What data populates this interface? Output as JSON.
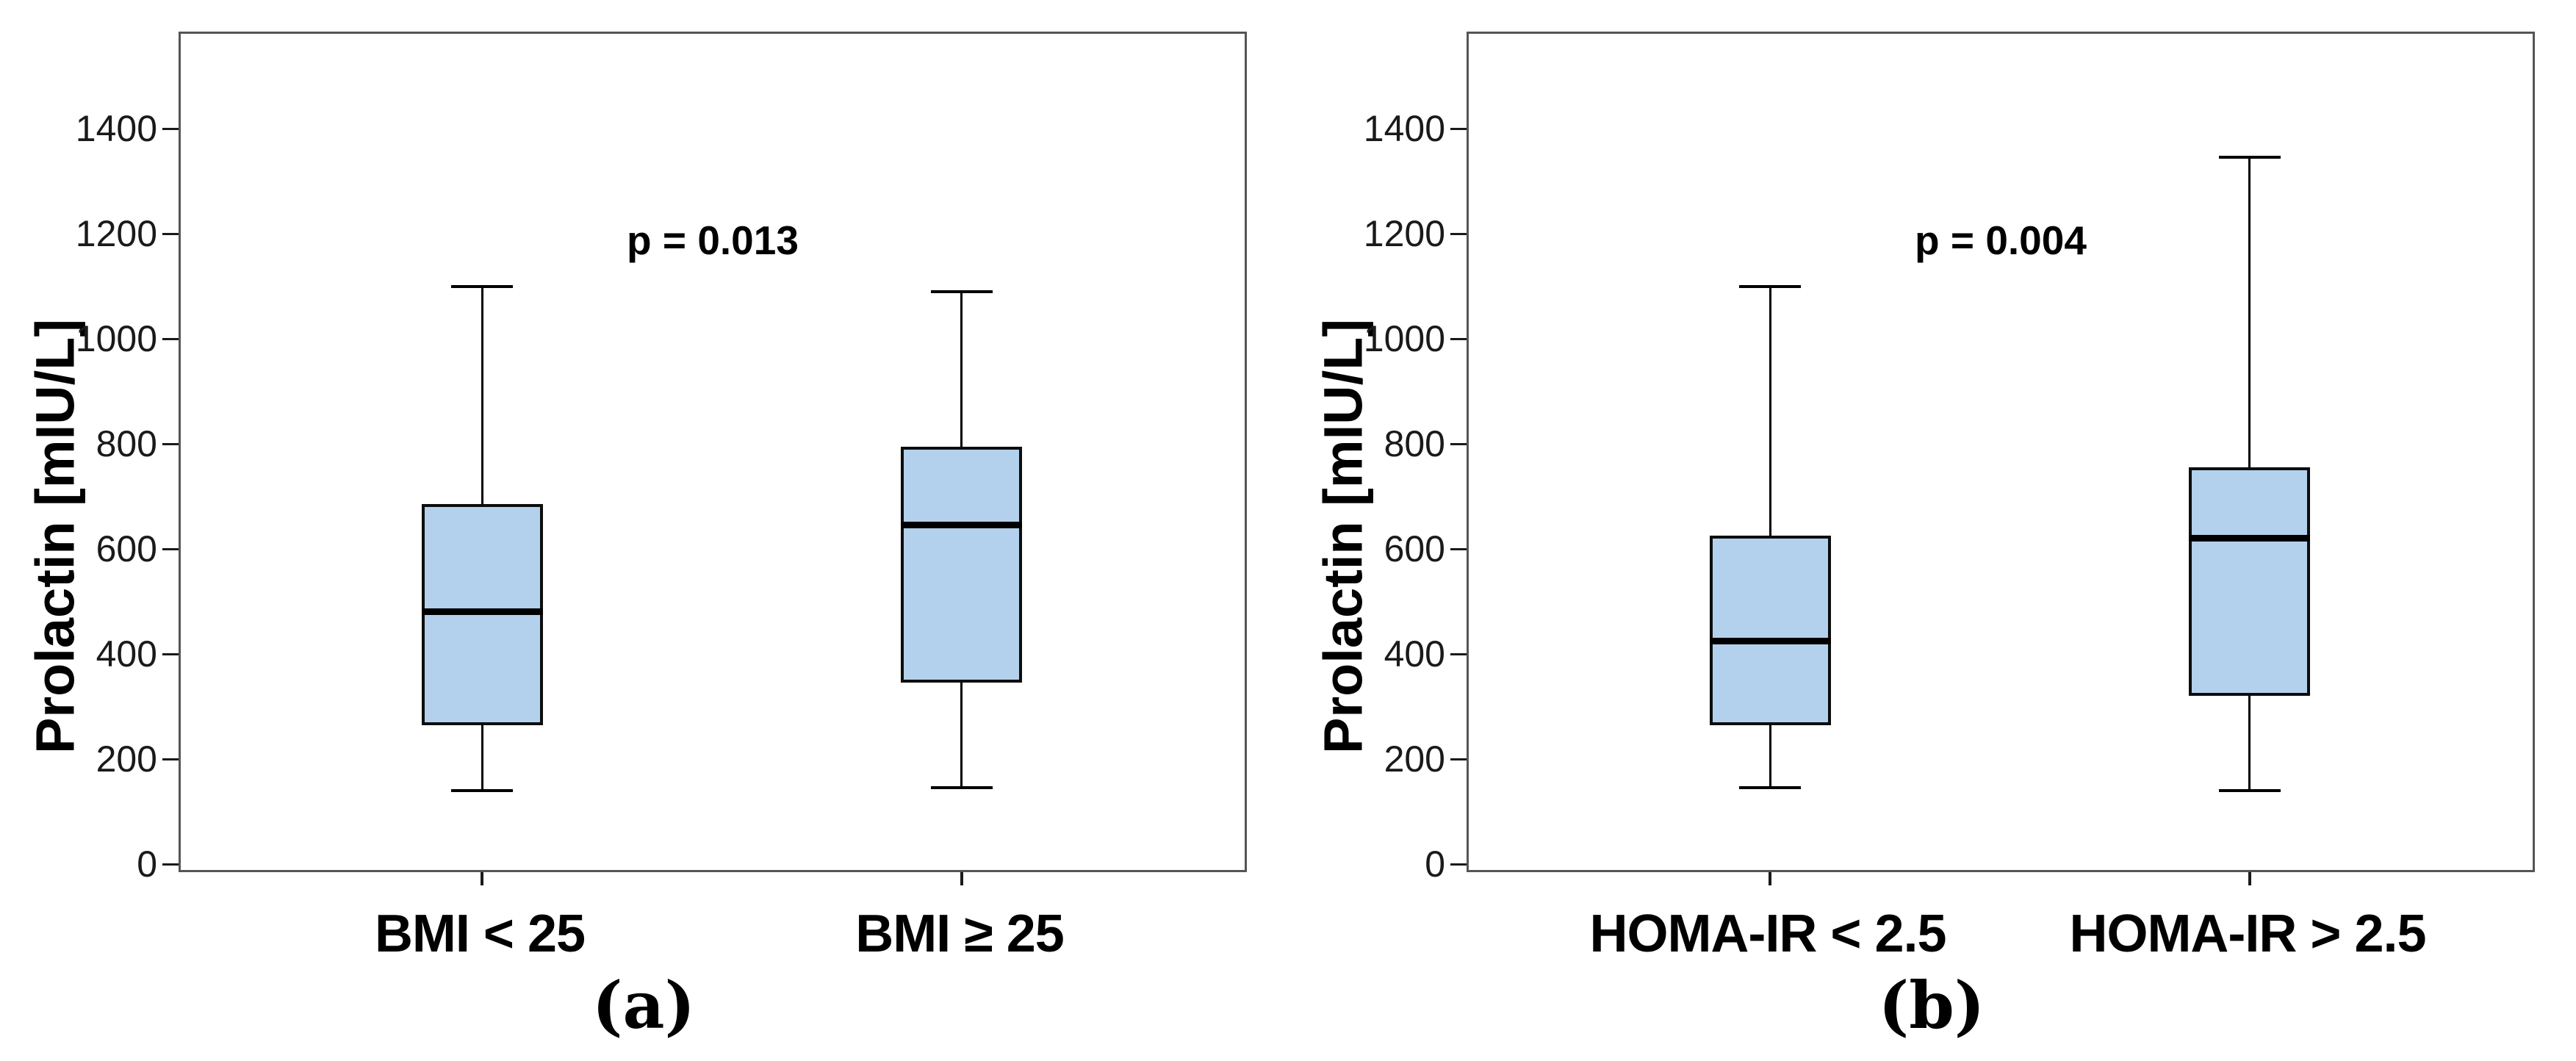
{
  "figure": {
    "background": "#ffffff",
    "panels": [
      {
        "caption": "(a)",
        "ylabel": "Prolactin [mIU/L]"
      },
      {
        "caption": "(b)",
        "ylabel": "Prolactin [mIU/L]"
      }
    ]
  },
  "chart_data": [
    {
      "type": "boxplot",
      "title": "",
      "xlabel": "",
      "ylabel": "Prolactin [mIU/L]",
      "annotation": "p = 0.013",
      "categories": [
        "BMI < 25",
        "BMI ≥ 25"
      ],
      "y_axis": {
        "min": 0,
        "max": 1400,
        "ticks": [
          0,
          200,
          400,
          600,
          800,
          1000,
          1200,
          1400
        ]
      },
      "grid": false,
      "series": [
        {
          "name": "BMI < 25",
          "whisker_low": 140,
          "q1": 265,
          "median": 480,
          "q3": 685,
          "whisker_high": 1100
        },
        {
          "name": "BMI ≥ 25",
          "whisker_low": 145,
          "q1": 345,
          "median": 645,
          "q3": 795,
          "whisker_high": 1090
        }
      ],
      "colors": {
        "box_fill": "#B3D1EC",
        "box_border": "#0d0d0d",
        "median": "#000000",
        "whisker": "#000000",
        "frame": "#555555"
      }
    },
    {
      "type": "boxplot",
      "title": "",
      "xlabel": "",
      "ylabel": "Prolactin [mIU/L]",
      "annotation": "p = 0.004",
      "categories": [
        "HOMA-IR < 2.5",
        "HOMA-IR > 2.5"
      ],
      "y_axis": {
        "min": 0,
        "max": 1400,
        "ticks": [
          0,
          200,
          400,
          600,
          800,
          1000,
          1200,
          1400
        ]
      },
      "grid": false,
      "series": [
        {
          "name": "HOMA-IR < 2.5",
          "whisker_low": 145,
          "q1": 265,
          "median": 425,
          "q3": 625,
          "whisker_high": 1100
        },
        {
          "name": "HOMA-IR > 2.5",
          "whisker_low": 140,
          "q1": 320,
          "median": 620,
          "q3": 755,
          "whisker_high": 1345
        }
      ],
      "colors": {
        "box_fill": "#B3D1EC",
        "box_border": "#0d0d0d",
        "median": "#000000",
        "whisker": "#000000",
        "frame": "#555555"
      }
    }
  ]
}
